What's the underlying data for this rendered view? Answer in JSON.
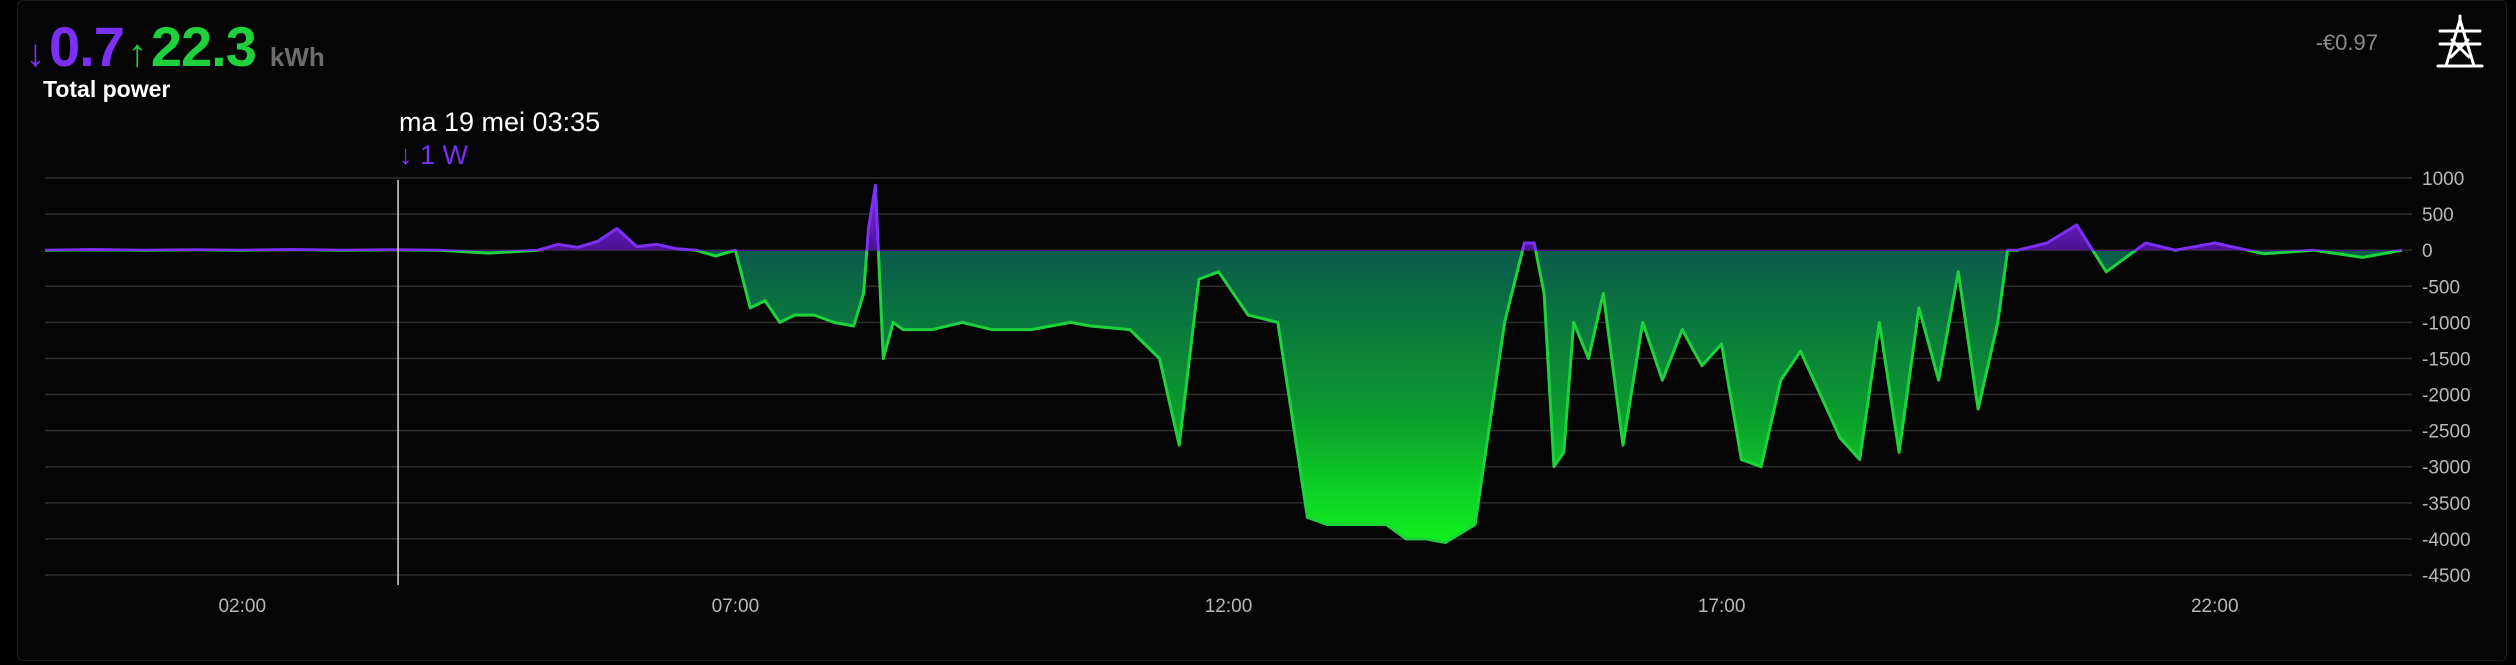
{
  "header": {
    "import_arrow": "↓",
    "import_value": "0.7",
    "export_arrow": "↑",
    "export_value": "22.3",
    "unit": "kWh",
    "title": "Total power",
    "cost": "-€0.97",
    "icon": "power-pylon-icon"
  },
  "colors": {
    "import": "#7b2ff7",
    "export": "#1ed23c",
    "grid": "#2e2e2e"
  },
  "tooltip": {
    "time": "ma 19 mei 03:35",
    "arrow": "↓",
    "value": "1 W"
  },
  "chart_data": {
    "type": "area",
    "title": "",
    "xlabel": "",
    "ylabel": "",
    "unit": "W",
    "ylim": [
      -4500,
      1000
    ],
    "xlim": [
      0,
      24
    ],
    "x_ticks": [
      "02:00",
      "07:00",
      "12:00",
      "17:00",
      "22:00"
    ],
    "y_ticks": [
      "1000",
      "500",
      "0",
      "-500",
      "-1000",
      "-1500",
      "-2000",
      "-2500",
      "-3000",
      "-3500",
      "-4000",
      "-4500"
    ],
    "grid": true,
    "cursor_x": 3.58,
    "series": [
      {
        "name": "",
        "x": [
          0,
          0.5,
          1,
          1.5,
          2,
          2.5,
          3,
          3.5,
          4,
          4.5,
          5,
          5.2,
          5.4,
          5.6,
          5.8,
          6.0,
          6.2,
          6.4,
          6.6,
          6.8,
          7.0,
          7.15,
          7.3,
          7.45,
          7.6,
          7.8,
          8.0,
          8.2,
          8.3,
          8.35,
          8.42,
          8.5,
          8.6,
          8.7,
          8.8,
          9.0,
          9.3,
          9.6,
          9.8,
          10.0,
          10.2,
          10.4,
          10.6,
          11.0,
          11.3,
          11.5,
          11.7,
          11.9,
          12.0,
          12.2,
          12.5,
          12.8,
          13.0,
          13.3,
          13.6,
          13.8,
          14.0,
          14.2,
          14.5,
          14.8,
          15.0,
          15.1,
          15.2,
          15.3,
          15.4,
          15.5,
          15.65,
          15.8,
          16.0,
          16.2,
          16.4,
          16.6,
          16.8,
          17.0,
          17.2,
          17.4,
          17.6,
          17.8,
          18.0,
          18.2,
          18.4,
          18.6,
          18.8,
          19.0,
          19.2,
          19.4,
          19.6,
          19.8,
          19.9,
          20.0,
          20.3,
          20.6,
          20.9,
          21.3,
          21.6,
          22.0,
          22.5,
          23.0,
          23.5,
          23.9
        ],
        "y": [
          0,
          10,
          0,
          5,
          0,
          10,
          0,
          5,
          0,
          -40,
          0,
          80,
          40,
          120,
          300,
          50,
          80,
          20,
          0,
          -80,
          0,
          -800,
          -700,
          -1000,
          -900,
          -900,
          -1000,
          -1050,
          -600,
          300,
          900,
          -1500,
          -1000,
          -1100,
          -1100,
          -1100,
          -1000,
          -1100,
          -1100,
          -1100,
          -1050,
          -1000,
          -1050,
          -1100,
          -1500,
          -2700,
          -400,
          -300,
          -500,
          -900,
          -1000,
          -3700,
          -3800,
          -3800,
          -3800,
          -4000,
          -4000,
          -4050,
          -3800,
          -1000,
          100,
          100,
          -600,
          -3000,
          -2800,
          -1000,
          -1500,
          -600,
          -2700,
          -1000,
          -1800,
          -1100,
          -1600,
          -1300,
          -2900,
          -3000,
          -1800,
          -1400,
          -2000,
          -2600,
          -2900,
          -1000,
          -2800,
          -800,
          -1800,
          -300,
          -2200,
          -1000,
          0,
          0,
          100,
          350,
          -300,
          100,
          0,
          100,
          -50,
          0,
          -100,
          0
        ]
      }
    ]
  }
}
